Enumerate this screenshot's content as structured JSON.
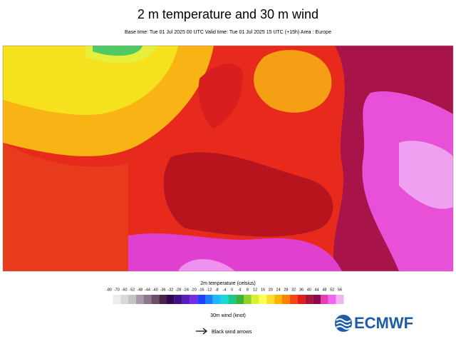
{
  "header": {
    "title": "2 m temperature and 30 m wind",
    "subtitle": "Base time: Tue 01 Jul 2025 00 UTC Valid time: Tue 01 Jul 2025 15 UTC (+15h) Area : Europe"
  },
  "legend": {
    "title": "2m temperature (celsius)",
    "ticks": [
      -80,
      -70,
      -60,
      -52,
      -48,
      -44,
      -40,
      -36,
      -32,
      -28,
      -24,
      -20,
      -16,
      -12,
      -8,
      -4,
      0,
      4,
      8,
      12,
      16,
      20,
      24,
      28,
      32,
      36,
      40,
      44,
      48,
      52,
      56
    ],
    "colors": [
      "#ededed",
      "#d9d9d9",
      "#c4c4c4",
      "#a89aa8",
      "#8c788c",
      "#6a506a",
      "#4a2448",
      "#300a50",
      "#40108c",
      "#5a1ebe",
      "#7a2ae6",
      "#2040ff",
      "#1e7cff",
      "#1eb8ff",
      "#18d8d8",
      "#18c88c",
      "#38b438",
      "#90d228",
      "#dcf032",
      "#ffff5a",
      "#ffdc28",
      "#ffb400",
      "#ff8200",
      "#f54614",
      "#e01e1e",
      "#a8143a",
      "#8c0a4a",
      "#e63cb4",
      "#f064f0",
      "#f0b4f0"
    ]
  },
  "wind_legend": {
    "title": "30m wind (knot)",
    "label": "Black wind arrows"
  },
  "logo": {
    "text": "ECMWF"
  }
}
